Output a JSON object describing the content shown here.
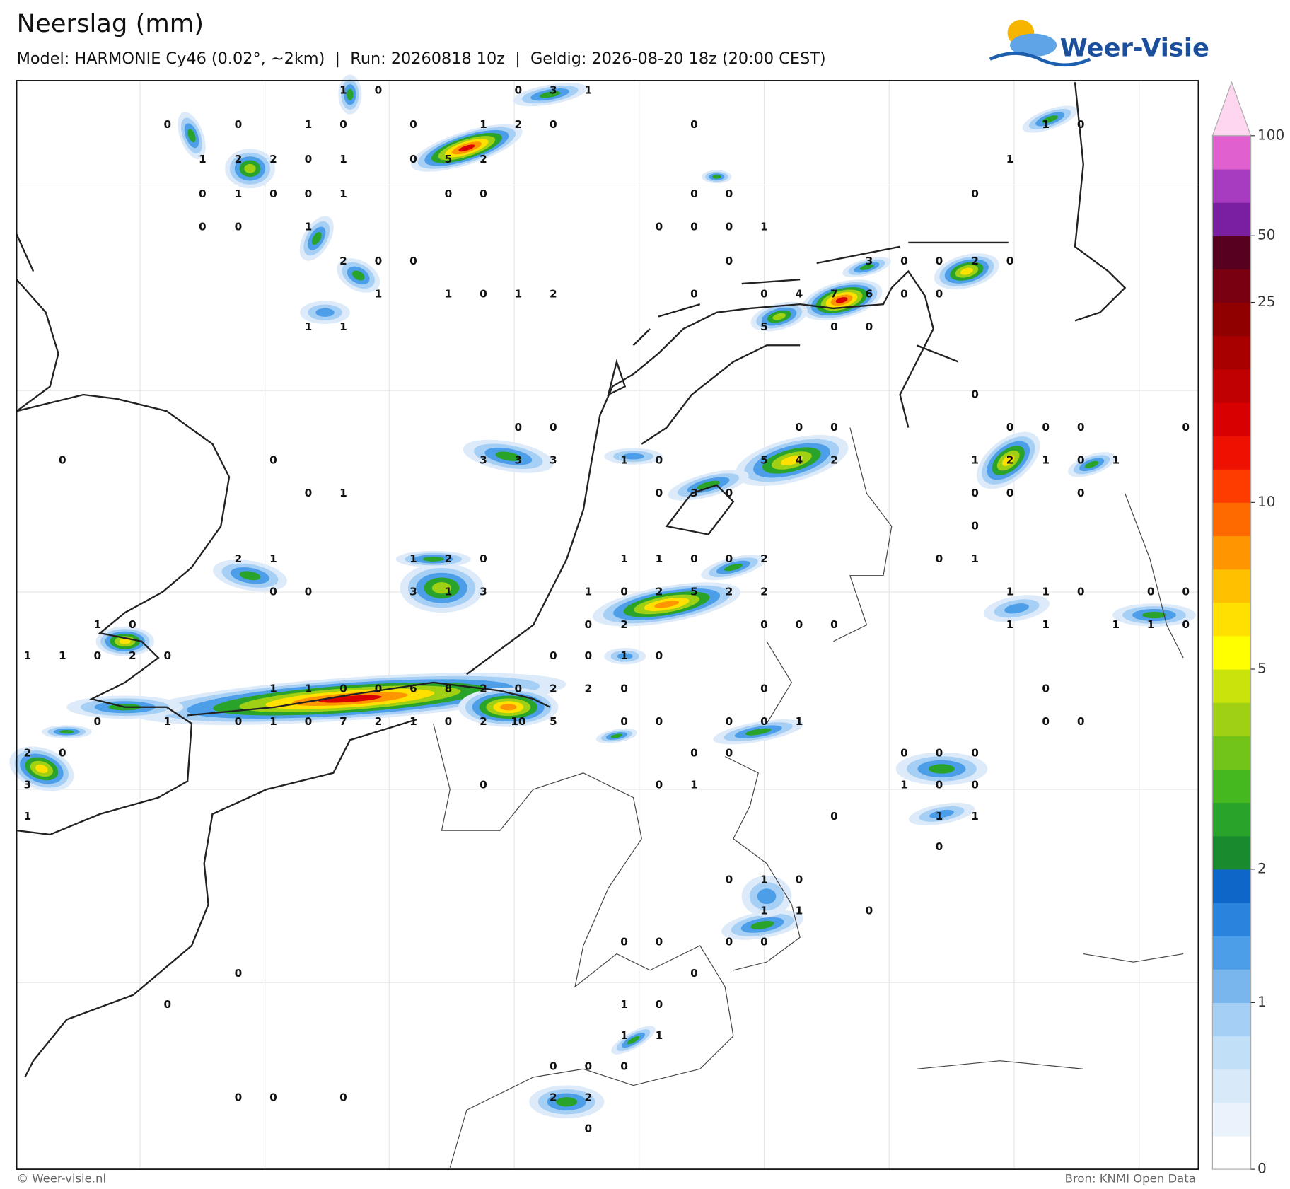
{
  "header": {
    "title": "Neerslag (mm)",
    "subtitle": "Model: HARMONIE Cy46 (0.02°, ~2km)  |  Run: 20260818 10z  |  Geldig: 2026-08-20 18z (20:00 CEST)",
    "logo": "Weer-Visie"
  },
  "map": {
    "point_rows": [
      [
        1,
        0,
        0,
        3,
        1
      ],
      [
        0,
        0,
        1,
        0,
        0,
        1,
        2,
        0,
        0,
        1,
        0
      ],
      [
        1,
        2,
        2,
        0,
        1,
        0,
        5,
        2,
        1
      ],
      [
        0,
        1,
        0,
        0,
        1,
        0,
        0,
        0,
        0,
        0
      ],
      [
        0,
        0,
        1,
        0,
        0,
        0,
        1
      ],
      [
        2,
        0,
        0,
        0,
        3,
        0,
        0,
        2,
        0
      ],
      [
        1,
        1,
        0,
        1,
        2,
        0,
        0,
        4,
        7,
        6,
        0,
        0
      ],
      [
        1,
        1,
        5,
        0,
        0
      ],
      [
        0
      ],
      [
        0,
        0,
        0,
        0,
        0,
        0,
        0,
        0
      ],
      [
        0,
        0,
        3,
        3,
        3,
        1,
        0,
        5,
        4,
        2,
        1,
        2,
        1,
        0,
        1
      ],
      [
        0,
        1,
        0,
        3,
        0,
        0,
        0,
        0
      ],
      [
        0
      ],
      [
        2,
        1,
        1,
        2,
        0,
        1,
        1,
        0,
        0,
        2,
        0,
        1
      ],
      [
        0,
        0,
        3,
        1,
        3,
        1,
        0,
        2,
        5,
        2,
        2,
        1,
        1,
        0,
        0,
        0
      ],
      [
        1,
        0,
        0,
        2,
        0,
        0,
        0,
        1,
        1,
        1,
        1,
        0
      ],
      [
        1,
        1,
        0,
        2,
        0,
        0,
        0,
        1,
        0
      ],
      [
        1,
        1,
        0,
        0,
        6,
        8,
        2,
        0,
        2,
        2,
        0,
        0,
        0
      ],
      [
        0,
        1,
        0,
        1,
        0,
        7,
        2,
        1,
        0,
        2,
        10,
        5,
        0,
        0,
        0,
        0,
        1,
        0,
        0
      ],
      [
        2,
        0,
        0,
        0,
        0,
        0,
        0
      ],
      [
        3,
        0,
        0,
        1,
        1,
        0,
        0
      ],
      [
        1,
        0,
        1,
        1
      ],
      [
        0
      ],
      [
        0,
        1,
        0
      ],
      [
        1,
        1,
        0
      ],
      [
        0,
        0,
        0,
        0
      ],
      [
        0,
        0
      ],
      [
        0,
        1,
        0
      ],
      [
        1,
        1
      ],
      [
        0,
        0,
        0
      ],
      [
        0,
        0,
        0,
        2,
        2
      ],
      [
        0
      ]
    ]
  },
  "colorbar": {
    "ticks": [
      0,
      1,
      2,
      5,
      10,
      25,
      50,
      100
    ],
    "colors": [
      "#ffffff",
      "#eaf3fc",
      "#d8eafa",
      "#c2dff8",
      "#a6cff5",
      "#7ab6ee",
      "#4d9ee8",
      "#2a84de",
      "#0e66c9",
      "#1a8a2e",
      "#2aa32a",
      "#45b81f",
      "#72c41a",
      "#9fd014",
      "#c9e40a",
      "#ffff00",
      "#ffe000",
      "#ffc000",
      "#ff9500",
      "#ff6a00",
      "#ff3c00",
      "#ee1000",
      "#d80000",
      "#c00000",
      "#a80000",
      "#900000",
      "#780010",
      "#580020",
      "#7a1fa0",
      "#a83cc0",
      "#e060d0"
    ],
    "extend_color": "#ffd6f0"
  },
  "footer": {
    "credit": "© Weer-visie.nl",
    "source": "Bron: KNMI Open Data"
  }
}
